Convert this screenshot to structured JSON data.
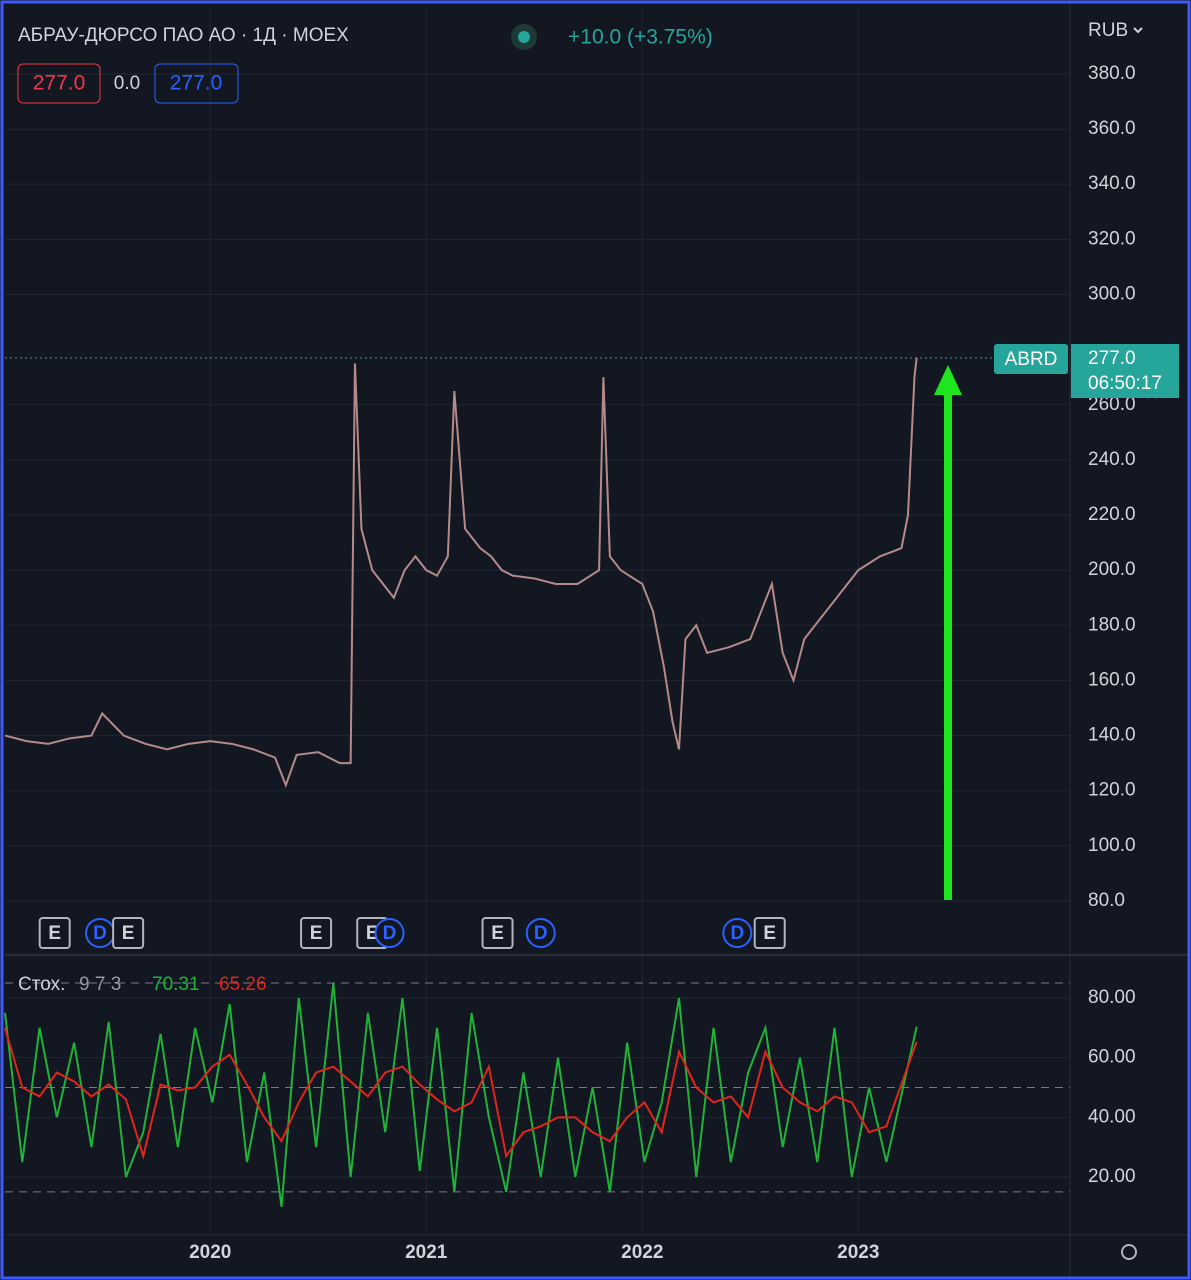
{
  "header": {
    "title": "АБРАУ-ДЮРСО ПАО АО · 1Д · MOEX",
    "change": "+10.0 (+3.75%)",
    "box_left": "277.0",
    "spread": "0.0",
    "box_right": "277.0",
    "currency": "RUB",
    "badge_symbol": "ABRD",
    "badge_price": "277.0",
    "badge_timer": "06:50:17"
  },
  "chart_data": [
    {
      "type": "line",
      "color": "#b58a8a",
      "x": [
        2019.05,
        2019.15,
        2019.25,
        2019.35,
        2019.45,
        2019.5,
        2019.6,
        2019.7,
        2019.8,
        2019.9,
        2020.0,
        2020.1,
        2020.2,
        2020.3,
        2020.35,
        2020.4,
        2020.5,
        2020.6,
        2020.65,
        2020.67,
        2020.7,
        2020.75,
        2020.8,
        2020.85,
        2020.9,
        2020.95,
        2021.0,
        2021.05,
        2021.1,
        2021.13,
        2021.18,
        2021.25,
        2021.3,
        2021.35,
        2021.4,
        2021.5,
        2021.6,
        2021.7,
        2021.8,
        2021.82,
        2021.85,
        2021.9,
        2022.0,
        2022.05,
        2022.1,
        2022.14,
        2022.17,
        2022.2,
        2022.25,
        2022.3,
        2022.4,
        2022.5,
        2022.6,
        2022.65,
        2022.7,
        2022.75,
        2022.8,
        2022.9,
        2023.0,
        2023.1,
        2023.2,
        2023.23,
        2023.26,
        2023.27
      ],
      "values": [
        140,
        138,
        137,
        139,
        140,
        148,
        140,
        137,
        135,
        137,
        138,
        137,
        135,
        132,
        122,
        133,
        134,
        130,
        130,
        275,
        215,
        200,
        195,
        190,
        200,
        205,
        200,
        198,
        205,
        265,
        215,
        208,
        205,
        200,
        198,
        197,
        195,
        195,
        200,
        270,
        205,
        200,
        195,
        185,
        165,
        145,
        135,
        175,
        180,
        170,
        172,
        175,
        195,
        170,
        160,
        175,
        180,
        190,
        200,
        205,
        208,
        220,
        270,
        277
      ],
      "last_price": 277,
      "xlim": [
        2019.05,
        2023.98
      ],
      "xticks": [
        2020,
        2021,
        2022,
        2023
      ],
      "ylim": [
        60.4,
        403.2
      ],
      "yticks": [
        {
          "value": 80,
          "label": "80.0"
        },
        {
          "value": 100,
          "label": "100.0"
        },
        {
          "value": 120,
          "label": "120.0"
        },
        {
          "value": 140,
          "label": "140.0"
        },
        {
          "value": 160,
          "label": "160.0"
        },
        {
          "value": 180,
          "label": "180.0"
        },
        {
          "value": 200,
          "label": "200.0"
        },
        {
          "value": 220,
          "label": "220.0"
        },
        {
          "value": 240,
          "label": "240.0"
        },
        {
          "value": 260,
          "label": "260.0"
        },
        {
          "value": 300,
          "label": "300.0"
        },
        {
          "value": 320,
          "label": "320.0"
        },
        {
          "value": 340,
          "label": "340.0"
        },
        {
          "value": 360,
          "label": "360.0"
        },
        {
          "value": 380,
          "label": "380.0"
        }
      ],
      "grid": true,
      "events": [
        {
          "label": "E",
          "x": 2019.28
        },
        {
          "label": "D",
          "x": 2019.49
        },
        {
          "label": "E",
          "x": 2019.62
        },
        {
          "label": "E",
          "x": 2020.49
        },
        {
          "label": "E",
          "x": 2020.75
        },
        {
          "label": "D",
          "x": 2020.83
        },
        {
          "label": "E",
          "x": 2021.33
        },
        {
          "label": "D",
          "x": 2021.53
        },
        {
          "label": "D",
          "x": 2022.44
        },
        {
          "label": "E",
          "x": 2022.59
        }
      ]
    },
    {
      "type": "line",
      "title": "Стох.",
      "params": "9 7 3",
      "x": [
        2019.05,
        2019.13,
        2019.21,
        2019.29,
        2019.37,
        2019.45,
        2019.53,
        2019.61,
        2019.69,
        2019.77,
        2019.85,
        2019.93,
        2020.01,
        2020.09,
        2020.17,
        2020.25,
        2020.33,
        2020.41,
        2020.49,
        2020.57,
        2020.65,
        2020.73,
        2020.81,
        2020.89,
        2020.97,
        2021.05,
        2021.13,
        2021.21,
        2021.29,
        2021.37,
        2021.45,
        2021.53,
        2021.61,
        2021.69,
        2021.77,
        2021.85,
        2021.93,
        2022.01,
        2022.09,
        2022.17,
        2022.25,
        2022.33,
        2022.41,
        2022.49,
        2022.57,
        2022.65,
        2022.73,
        2022.81,
        2022.89,
        2022.97,
        2023.05,
        2023.13,
        2023.27
      ],
      "series": [
        {
          "color": "#1fb33a",
          "values": [
            75,
            25,
            70,
            40,
            65,
            30,
            72,
            20,
            35,
            68,
            30,
            70,
            45,
            78,
            25,
            55,
            10,
            80,
            30,
            85,
            20,
            75,
            35,
            80,
            22,
            70,
            15,
            75,
            40,
            15,
            55,
            20,
            60,
            20,
            50,
            15,
            65,
            25,
            45,
            80,
            20,
            70,
            25,
            55,
            70,
            30,
            60,
            25,
            70,
            20,
            50,
            25,
            70.31
          ]
        },
        {
          "color": "#e0261b",
          "values": [
            70,
            50,
            47,
            55,
            52,
            47,
            51,
            46,
            27,
            51,
            49,
            50,
            57,
            61,
            51,
            40,
            32,
            45,
            55,
            57,
            52,
            47,
            55,
            57,
            51,
            46,
            42,
            45,
            57,
            27,
            35,
            37,
            40,
            40,
            35,
            32,
            40,
            45,
            35,
            62,
            50,
            45,
            47,
            40,
            62,
            50,
            45,
            42,
            47,
            45,
            35,
            37,
            65.26
          ]
        }
      ],
      "bands": [
        85,
        50,
        15
      ],
      "xlim": [
        2019.05,
        2023.98
      ],
      "xticks": [
        2020,
        2021,
        2022,
        2023
      ],
      "ylim": [
        0.56,
        94.4
      ],
      "yticks": [
        {
          "value": 20,
          "label": "20.00"
        },
        {
          "value": 40,
          "label": "40.00"
        },
        {
          "value": 60,
          "label": "60.00"
        },
        {
          "value": 80,
          "label": "80.00"
        }
      ],
      "grid": true
    }
  ]
}
